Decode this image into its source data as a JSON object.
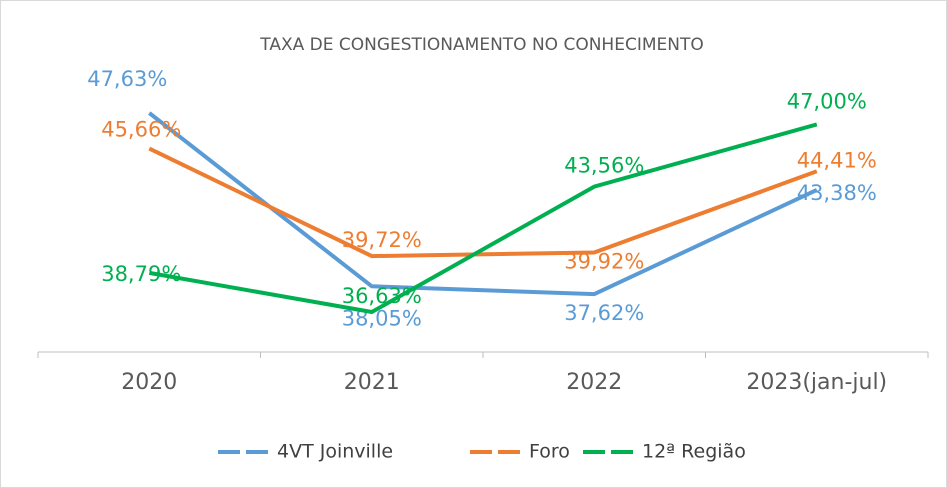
{
  "chart_data": {
    "type": "line",
    "title": "TAXA DE CONGESTIONAMENTO NO CONHECIMENTO",
    "categories": [
      "2020",
      "2021",
      "2022",
      "2023(jan-jul)"
    ],
    "series": [
      {
        "name": "4VT Joinville",
        "color": "#5b9bd5",
        "values": [
          47.63,
          38.05,
          37.62,
          43.38
        ],
        "value_labels": [
          "47,63%",
          "38,05%",
          "37,62%",
          "43,38%"
        ]
      },
      {
        "name": "Foro",
        "color": "#ed7d31",
        "values": [
          45.66,
          39.72,
          39.92,
          44.41
        ],
        "value_labels": [
          "45,66%",
          "39,72%",
          "39,92%",
          "44,41%"
        ]
      },
      {
        "name": "12ª Região",
        "color": "#00b050",
        "values": [
          38.79,
          36.63,
          43.56,
          47.0
        ],
        "value_labels": [
          "38,79%",
          "36,63%",
          "43,56%",
          "47,00%"
        ]
      }
    ]
  }
}
